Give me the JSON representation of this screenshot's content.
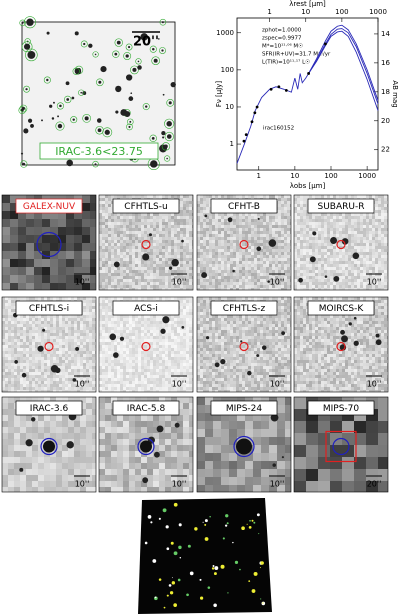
{
  "finder": {
    "scale": "20''",
    "label": "IRAC-3.6<23.75"
  },
  "chart_data": {
    "type": "sed",
    "x_label": "λobs [μm]",
    "x2_label": "λrest [μm]",
    "y_label": "Fν [μJy]",
    "y2_label": "AB mag",
    "annotations": [
      "zphot=1.0000",
      "zspec=0.9977",
      "M*=10¹¹·⁰⁶ M☉",
      "SFR(IR+UV)=31.7 M☉/yr",
      "L(TIR)=10¹¹·¹⁷ L☉",
      "irac160152"
    ],
    "xlog": true,
    "ylog": true,
    "xlim": [
      0.25,
      2000
    ],
    "xticks": [
      1,
      10,
      100,
      1000
    ],
    "x2lim": [
      0.125,
      1000
    ],
    "x2ticks": [
      1,
      10,
      100,
      1000
    ],
    "ylim": [
      0.2,
      2500
    ],
    "yticks": [
      1,
      10,
      100,
      1000
    ],
    "y2lim": [
      23.4,
      12.9
    ],
    "y2ticks": [
      14,
      16,
      18,
      20,
      22
    ],
    "series": [
      {
        "type": "line",
        "color": "#2a2ab8",
        "x": [
          0.25,
          0.4,
          0.6,
          0.8,
          1.2,
          2,
          3,
          5,
          8,
          10,
          12,
          14,
          16,
          20,
          24,
          40,
          70,
          100,
          150,
          200,
          300,
          500,
          1000,
          2000
        ],
        "values": [
          0.3,
          1,
          3,
          8,
          18,
          30,
          35,
          30,
          25,
          60,
          30,
          80,
          45,
          60,
          80,
          200,
          600,
          1100,
          1500,
          1600,
          1200,
          500,
          100,
          15
        ]
      },
      {
        "type": "line",
        "color": "#2a2ab8",
        "x": [
          24,
          40,
          70,
          100,
          150,
          200,
          300,
          500,
          1000,
          2000
        ],
        "values": [
          80,
          180,
          500,
          900,
          1250,
          1300,
          1000,
          420,
          80,
          12
        ]
      },
      {
        "type": "line",
        "color": "#2a2ab8",
        "x": [
          24,
          40,
          70,
          100,
          150,
          200,
          300,
          500,
          1000,
          2000
        ],
        "values": [
          80,
          170,
          450,
          800,
          1050,
          1100,
          800,
          300,
          55,
          8
        ]
      },
      {
        "type": "scatter",
        "color": "#000000",
        "x": [
          0.39,
          0.45,
          0.65,
          0.78,
          0.9,
          2.2,
          3.6,
          5.8,
          24,
          70
        ],
        "values": [
          1.2,
          1.8,
          4,
          7,
          10,
          30,
          35,
          28,
          80,
          500
        ]
      }
    ]
  },
  "panels": [
    {
      "label": "GALEX-NUV",
      "scale": "10''",
      "label_color": "#e02020",
      "marker_color": "#2020c0",
      "marker_size": 12
    },
    {
      "label": "CFHTLS-u",
      "scale": "10''",
      "label_color": "#000000",
      "marker_color": "#e02020",
      "marker_size": 4
    },
    {
      "label": "CFHT-B",
      "scale": "10''",
      "label_color": "#000000",
      "marker_color": "#e02020",
      "marker_size": 4
    },
    {
      "label": "SUBARU-R",
      "scale": "10''",
      "label_color": "#000000",
      "marker_color": "#e02020",
      "marker_size": 4
    },
    {
      "label": "CFHTLS-i",
      "scale": "10''",
      "label_color": "#000000",
      "marker_color": "#e02020",
      "marker_size": 4
    },
    {
      "label": "ACS-i",
      "scale": "10''",
      "label_color": "#000000",
      "marker_color": "#e02020",
      "marker_size": 4
    },
    {
      "label": "CFHTLS-z",
      "scale": "10''",
      "label_color": "#000000",
      "marker_color": "#e02020",
      "marker_size": 4
    },
    {
      "label": "MOIRCS-K",
      "scale": "10''",
      "label_color": "#000000",
      "marker_color": "#e02020",
      "marker_size": 4
    },
    {
      "label": "IRAC-3.6",
      "scale": "10''",
      "label_color": "#000000",
      "marker_color": "#2020c0",
      "marker_size": 8
    },
    {
      "label": "IRAC-5.8",
      "scale": "10''",
      "label_color": "#000000",
      "marker_color": "#2020c0",
      "marker_size": 8
    },
    {
      "label": "MIPS-24",
      "scale": "10''",
      "label_color": "#000000",
      "marker_color": "#2020c0",
      "marker_size": 10
    },
    {
      "label": "MIPS-70",
      "scale": "20''",
      "label_color": "#000000",
      "marker_color": "#2020c0",
      "marker_size": 8,
      "box_color": "#e02020"
    }
  ]
}
